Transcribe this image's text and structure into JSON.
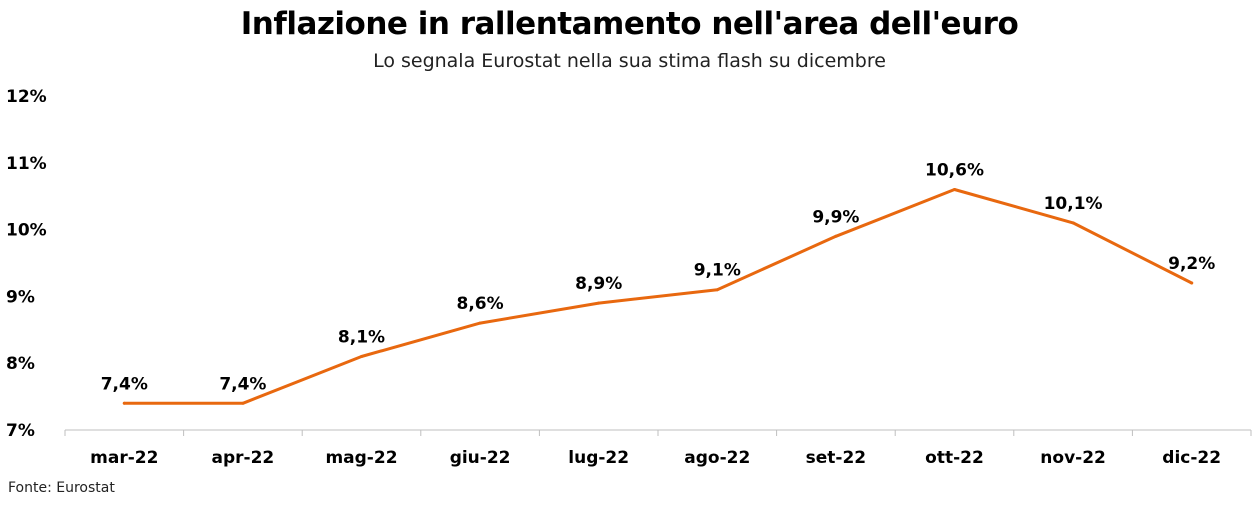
{
  "chart_data": {
    "type": "line",
    "title": "Inflazione in rallentamento nell'area dell'euro",
    "subtitle": "Lo segnala Eurostat nella sua stima flash su dicembre",
    "source": "Fonte: Eurostat",
    "categories": [
      "mar-22",
      "apr-22",
      "mag-22",
      "giu-22",
      "lug-22",
      "ago-22",
      "set-22",
      "ott-22",
      "nov-22",
      "dic-22"
    ],
    "series": [
      {
        "values": [
          7.4,
          7.4,
          8.1,
          8.6,
          8.9,
          9.1,
          9.9,
          10.6,
          10.1,
          9.2
        ],
        "labels": [
          "7,4%",
          "7,4%",
          "8,1%",
          "8,6%",
          "8,9%",
          "9,1%",
          "9,9%",
          "10,6%",
          "10,1%",
          "9,2%"
        ],
        "color": "#E8680F"
      }
    ],
    "ylim": [
      7,
      12
    ],
    "yticks": [
      7,
      8,
      9,
      10,
      11,
      12
    ],
    "ytick_labels": [
      "7%",
      "8%",
      "9%",
      "10%",
      "11%",
      "12%"
    ],
    "grid": false,
    "axis_color": "#BFBFBF"
  }
}
